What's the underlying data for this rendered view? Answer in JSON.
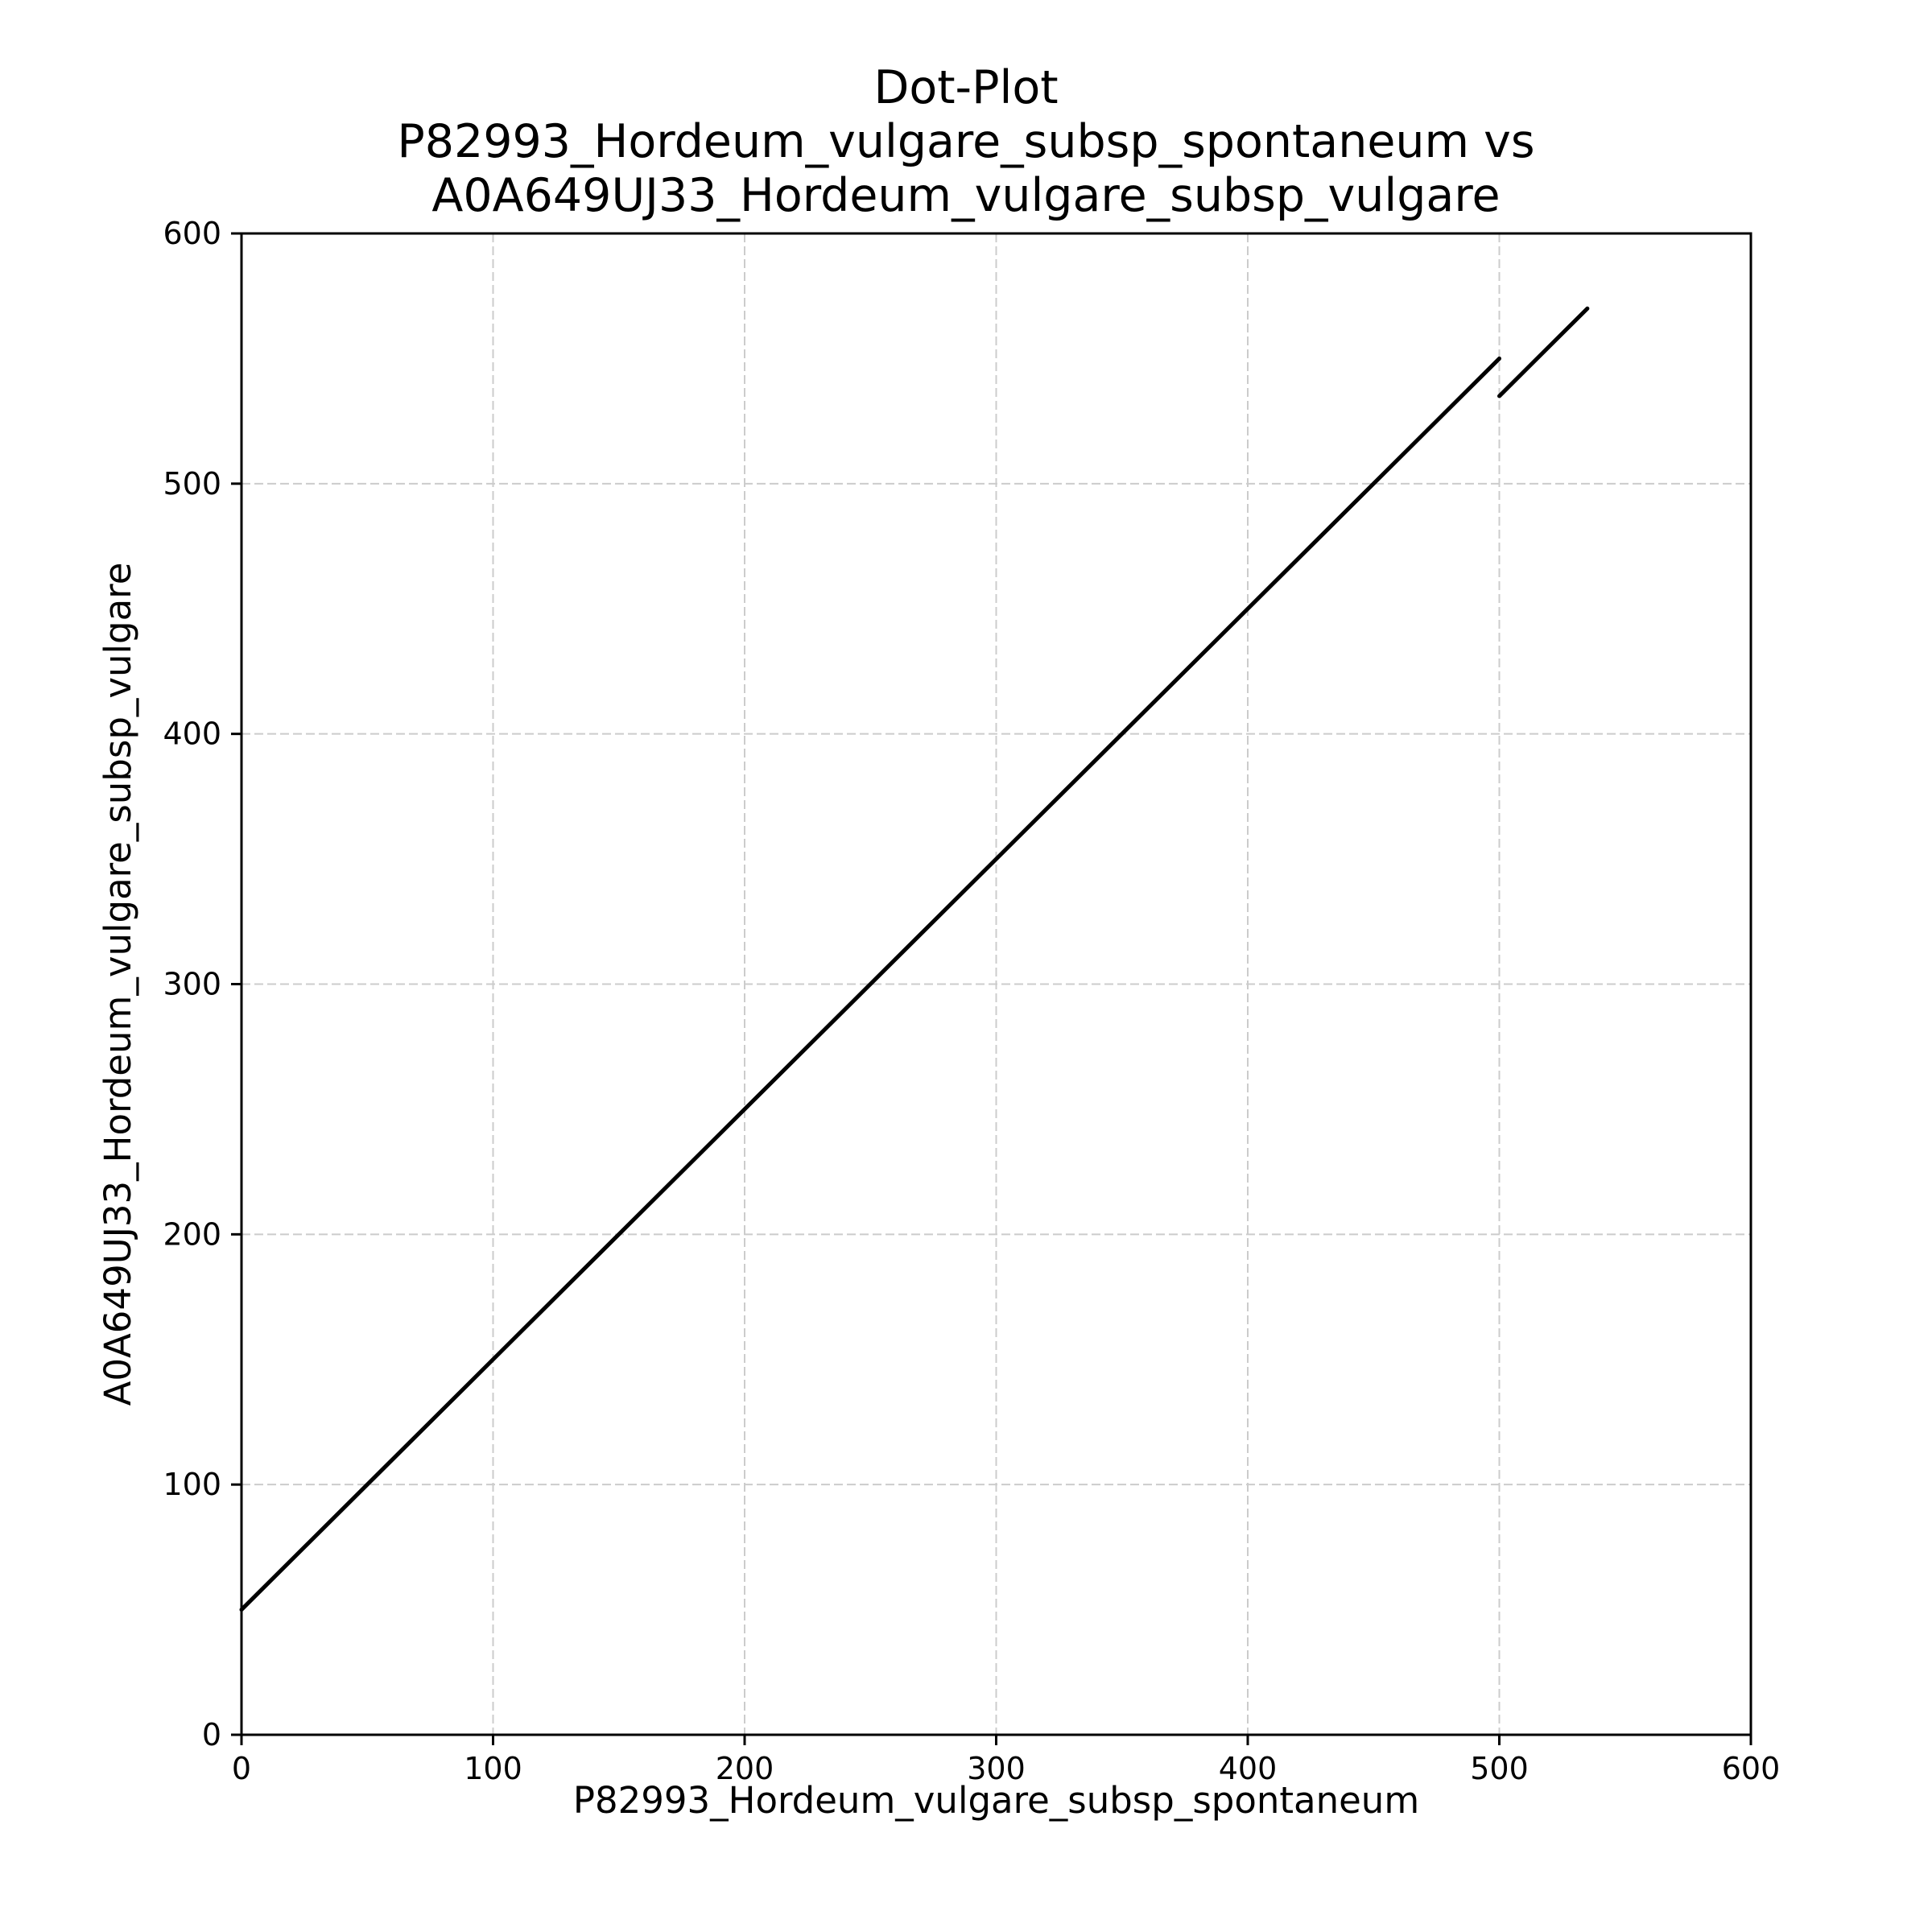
{
  "chart_data": {
    "type": "line",
    "title_lines": [
      "Dot-Plot",
      "P82993_Hordeum_vulgare_subsp_spontaneum vs",
      "A0A649UJ33_Hordeum_vulgare_subsp_vulgare"
    ],
    "xlabel": "P82993_Hordeum_vulgare_subsp_spontaneum",
    "ylabel": "A0A649UJ33_Hordeum_vulgare_subsp_vulgare",
    "xlim": [
      0,
      600
    ],
    "ylim": [
      0,
      600
    ],
    "xticks": [
      "0",
      "100",
      "200",
      "300",
      "400",
      "500",
      "600"
    ],
    "yticks": [
      "0",
      "100",
      "200",
      "300",
      "400",
      "500",
      "600"
    ],
    "grid": true,
    "line_color": "#000000",
    "series": [
      {
        "x": [
          0,
          500
        ],
        "y": [
          50,
          550
        ]
      },
      {
        "x": [
          500,
          535
        ],
        "y": [
          535,
          570
        ]
      }
    ]
  }
}
